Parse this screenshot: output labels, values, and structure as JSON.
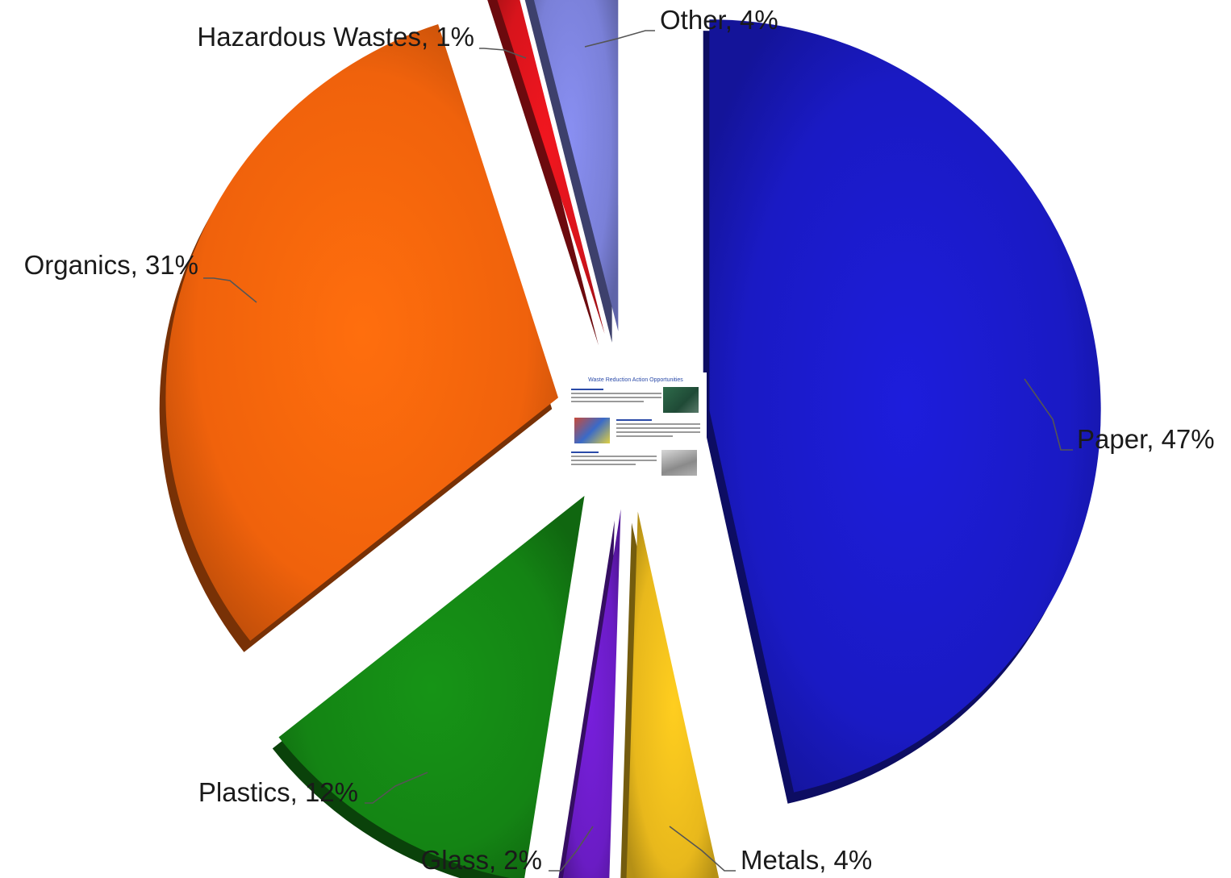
{
  "chart_data": {
    "type": "pie",
    "title": "",
    "slices": [
      {
        "label": "Paper",
        "value": 47,
        "display": "Paper, 47%",
        "color": "#1a1ac4"
      },
      {
        "label": "Metals",
        "value": 4,
        "display": "Metals, 4%",
        "color": "#e8b81c"
      },
      {
        "label": "Glass",
        "value": 2,
        "display": "Glass, 2%",
        "color": "#6a1cc4"
      },
      {
        "label": "Plastics",
        "value": 12,
        "display": "Plastics, 12%",
        "color": "#148414"
      },
      {
        "label": "Organics",
        "value": 31,
        "display": "Organics, 31%",
        "color": "#f0620c"
      },
      {
        "label": "Hazardous  Wastes",
        "value": 1,
        "display": "Hazardous  Wastes, 1%",
        "color": "#d8141c"
      },
      {
        "label": "Other",
        "value": 4,
        "display": "Other, 4%",
        "color": "#7a80d8"
      }
    ],
    "legend": "none",
    "data_labels": "outside with leader lines"
  },
  "inset": {
    "title": "Waste Reduction Action Opportunities"
  }
}
